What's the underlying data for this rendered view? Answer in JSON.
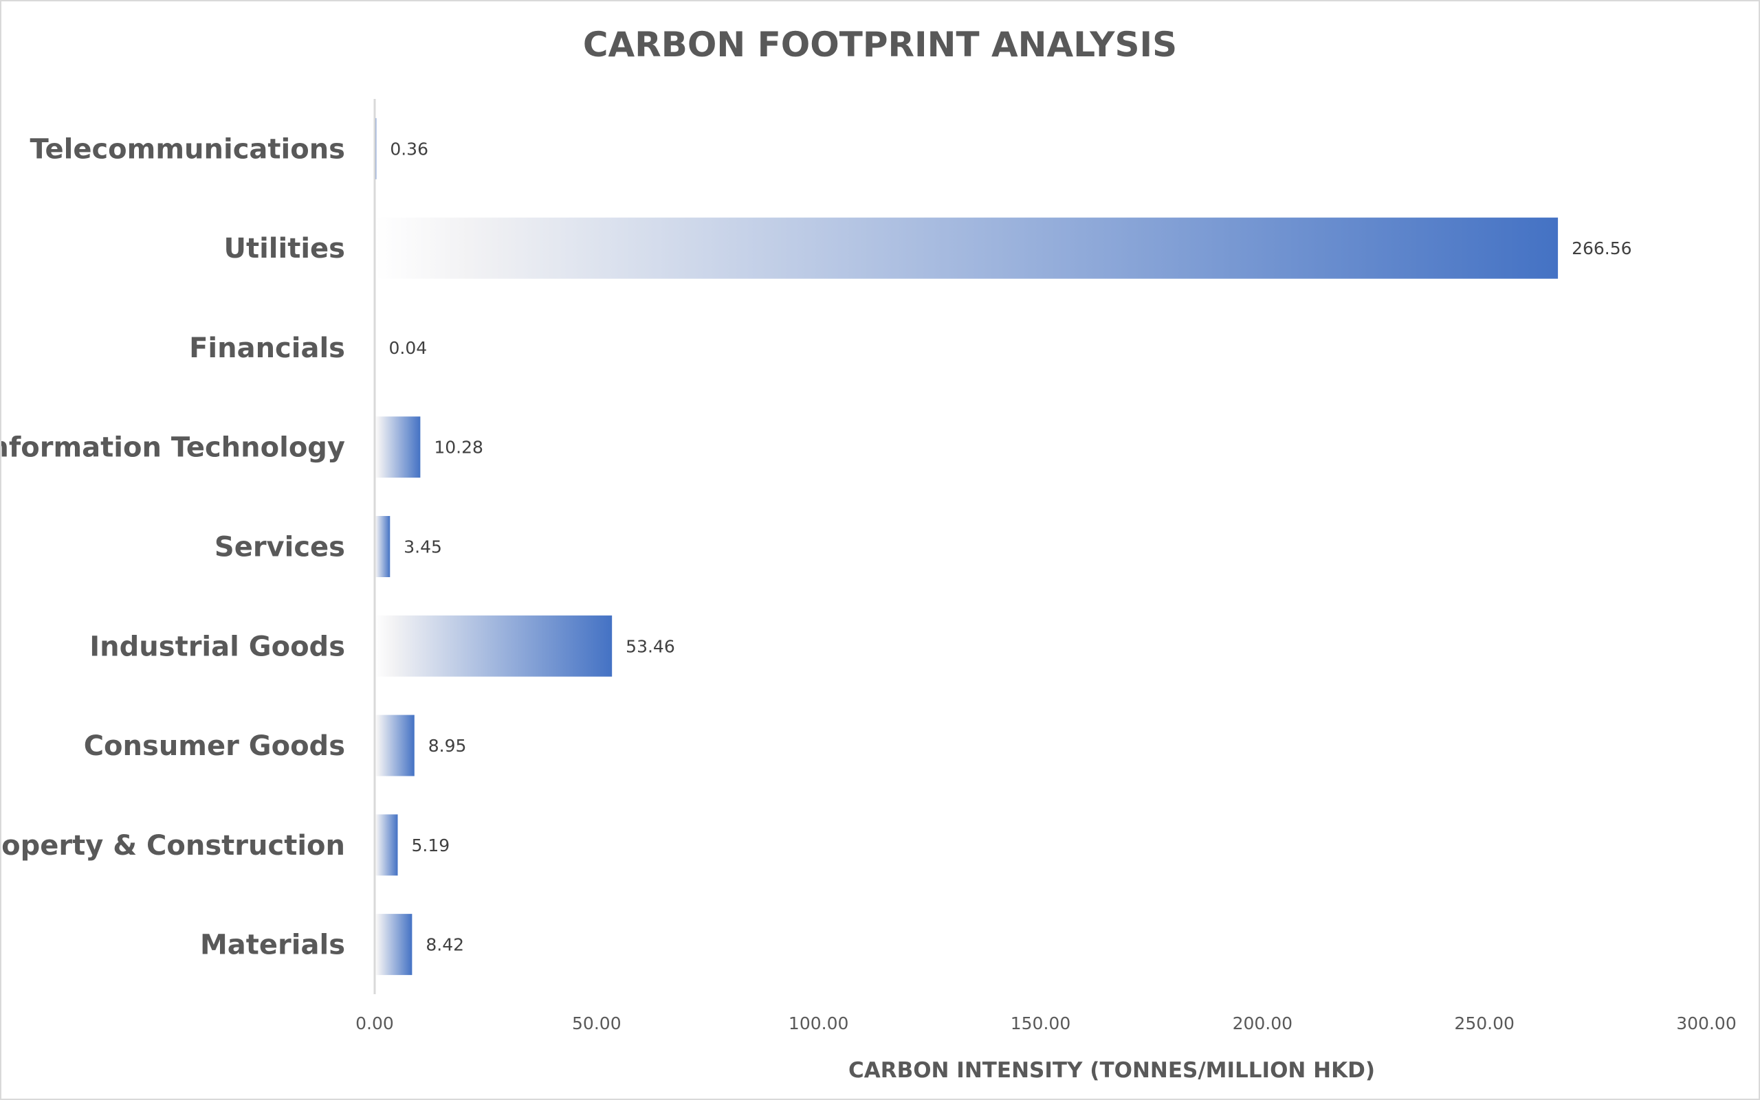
{
  "chart_data": {
    "type": "bar",
    "orientation": "horizontal",
    "title": "CARBON FOOTPRINT ANALYSIS",
    "xlabel": "CARBON INTENSITY (TONNES/MILLION HKD)",
    "ylabel": "",
    "xlim": [
      0,
      300
    ],
    "xticks": [
      0,
      50,
      100,
      150,
      200,
      250,
      300
    ],
    "xtick_labels": [
      "0.00",
      "50.00",
      "100.00",
      "150.00",
      "200.00",
      "250.00",
      "300.00"
    ],
    "grid": false,
    "legend": "none",
    "categories": [
      "Telecommunications",
      "Utilities",
      "Financials",
      "Information Technology",
      "Services",
      "Industrial Goods",
      "Consumer Goods",
      "Property & Construction",
      "Materials"
    ],
    "values": [
      0.36,
      266.56,
      0.04,
      10.28,
      3.45,
      53.46,
      8.95,
      5.19,
      8.42
    ],
    "data_labels": [
      "0.36",
      "266.56",
      "0.04",
      "10.28",
      "3.45",
      "53.46",
      "8.95",
      "5.19",
      "8.42"
    ],
    "colors": {
      "bar_start": "#ffffff",
      "bar_end": "#4472c4",
      "axis_line": "#d9d9d9",
      "text": "#595959"
    }
  }
}
